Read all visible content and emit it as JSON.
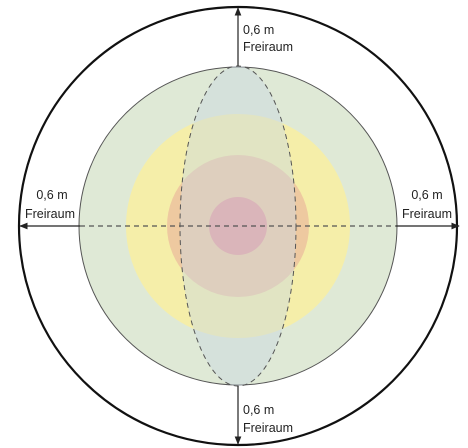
{
  "labels": {
    "top": {
      "distance": "0,6 m",
      "caption": "Freiraum"
    },
    "bottom": {
      "distance": "0,6 m",
      "caption": "Freiraum"
    },
    "left": {
      "distance": "0,6 m",
      "caption": "Freiraum"
    },
    "right": {
      "distance": "0,6 m",
      "caption": "Freiraum"
    }
  },
  "colors": {
    "outer_ring_stroke": "#111111",
    "green_zone": "#dfe9d6",
    "yellow_zone": "#f5eea9",
    "orange_zone": "#eec9a0",
    "red_core": "#e7999a",
    "ellipse_fill": "#c9d6e2",
    "dashed_line": "#555555",
    "arrow": "#222222"
  }
}
